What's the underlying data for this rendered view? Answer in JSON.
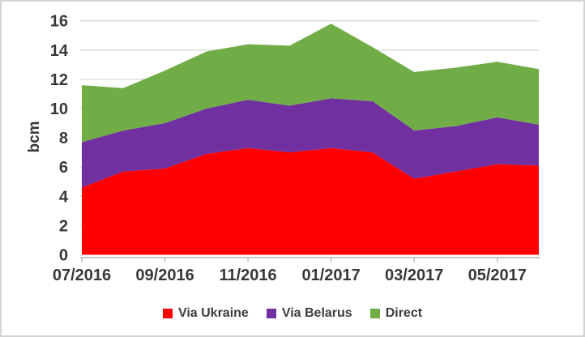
{
  "chart_data": {
    "type": "area",
    "stacked": true,
    "title": "",
    "xlabel": "",
    "ylabel": "bcm",
    "ylim": [
      0,
      16
    ],
    "ytick_step": 2,
    "y_tick_labels": [
      "0",
      "2",
      "4",
      "6",
      "8",
      "10",
      "12",
      "14",
      "16"
    ],
    "x": [
      "07/2016",
      "08/2016",
      "09/2016",
      "10/2016",
      "11/2016",
      "12/2016",
      "01/2017",
      "02/2017",
      "03/2017",
      "04/2017",
      "05/2017",
      "06/2017"
    ],
    "x_tick_indices": [
      0,
      2,
      4,
      6,
      8,
      10
    ],
    "x_tick_labels": [
      "07/2016",
      "09/2016",
      "11/2016",
      "01/2017",
      "03/2017",
      "05/2017"
    ],
    "grid": true,
    "legend_position": "bottom",
    "series": [
      {
        "name": "Via Ukraine",
        "color": "#FF0000",
        "values": [
          4.6,
          5.7,
          5.9,
          6.9,
          7.3,
          7.0,
          7.3,
          7.0,
          5.2,
          5.7,
          6.2,
          6.1
        ]
      },
      {
        "name": "Via Belarus",
        "color": "#7030A0",
        "values": [
          3.1,
          2.8,
          3.1,
          3.1,
          3.3,
          3.2,
          3.4,
          3.5,
          3.3,
          3.1,
          3.2,
          2.8
        ]
      },
      {
        "name": "Direct",
        "color": "#70AD47",
        "values": [
          3.9,
          2.9,
          3.6,
          3.9,
          3.8,
          4.1,
          5.1,
          3.7,
          4.0,
          4.0,
          3.8,
          3.8
        ]
      }
    ]
  },
  "colors": {
    "background": "#FFFFFF",
    "frame_border": "#D4D4D4",
    "gridline": "#D9D9D9",
    "axis_line": "#C9C9C9",
    "tick": "#BFBFBF",
    "label_text": "#383838"
  },
  "legend": {
    "items": [
      {
        "label": "Via Ukraine",
        "color": "#FF0000"
      },
      {
        "label": "Via Belarus",
        "color": "#7030A0"
      },
      {
        "label": "Direct",
        "color": "#70AD47"
      }
    ]
  }
}
